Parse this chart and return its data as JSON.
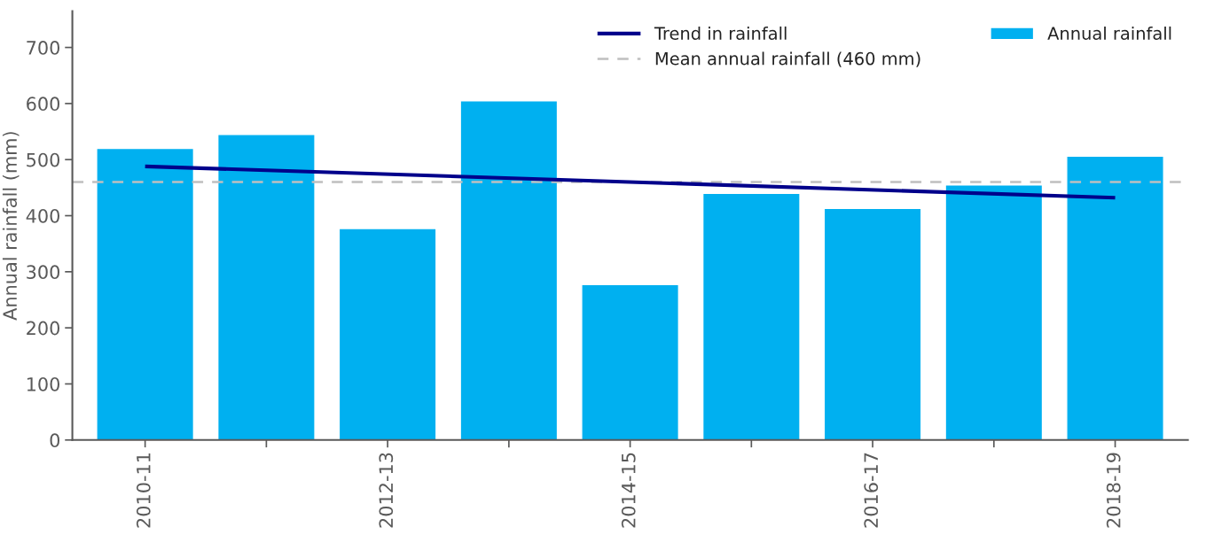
{
  "chart_data": {
    "type": "bar",
    "ylabel": "Annual rainfall (mm)",
    "categories": [
      "2010-11",
      null,
      "2012-13",
      null,
      "2014-15",
      null,
      "2016-17",
      null,
      "2018-19"
    ],
    "series": [
      {
        "name": "Annual rainfall",
        "color": "#00b0f0",
        "values": [
          520,
          545,
          377,
          605,
          277,
          440,
          413,
          455,
          506
        ]
      },
      {
        "name": "Trend in rainfall",
        "type": "line",
        "color": "#00008b",
        "values": [
          488,
          null,
          null,
          null,
          null,
          null,
          null,
          null,
          432
        ]
      }
    ],
    "ref_lines": [
      {
        "axis": "y",
        "value": 460,
        "label": "Mean annual rainfall (460 mm)",
        "color": "#bfbfbf",
        "line_style": "dashed"
      }
    ],
    "ylim": [
      0,
      765
    ],
    "yticks": [
      0,
      100,
      200,
      300,
      400,
      500,
      600,
      700
    ],
    "grid": false,
    "legend": "top right"
  }
}
